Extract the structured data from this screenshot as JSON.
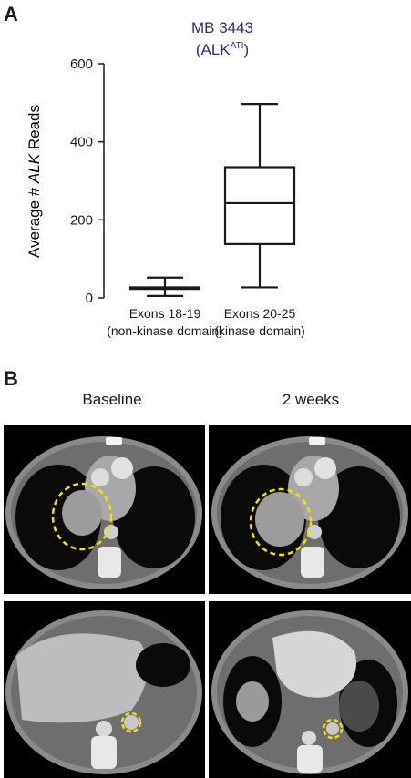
{
  "panel_a": {
    "letter": "A"
  },
  "panel_b": {
    "letter": "B",
    "col_left": "Baseline",
    "col_right": "2 weeks",
    "images": [
      {
        "name": "ct-chest-baseline"
      },
      {
        "name": "ct-chest-2-weeks"
      },
      {
        "name": "ct-abdomen-baseline"
      },
      {
        "name": "ct-abdomen-2-weeks"
      }
    ],
    "highlight_color": "#f5e000"
  },
  "chart_data": {
    "type": "box",
    "title": "MB 3443",
    "subtitle_main": "(ALK",
    "subtitle_super": "ATI",
    "subtitle_close": ")",
    "title_color": "#2d2d7a",
    "ylabel_prefix": "Average # ",
    "ylabel_italic": "ALK",
    "ylabel_suffix": " Reads",
    "ylim": [
      0,
      600
    ],
    "yticks": [
      "0",
      "200",
      "400",
      "600"
    ],
    "categories": [
      {
        "line1": "Exons 18-19",
        "line2": "(non-kinase domain)",
        "min": 5,
        "q1": 23,
        "median": 25,
        "q3": 27,
        "max": 52
      },
      {
        "line1": "Exons 20-25",
        "line2": "(kinase domain)",
        "min": 27,
        "q1": 138,
        "median": 243,
        "q3": 335,
        "max": 497
      }
    ]
  }
}
